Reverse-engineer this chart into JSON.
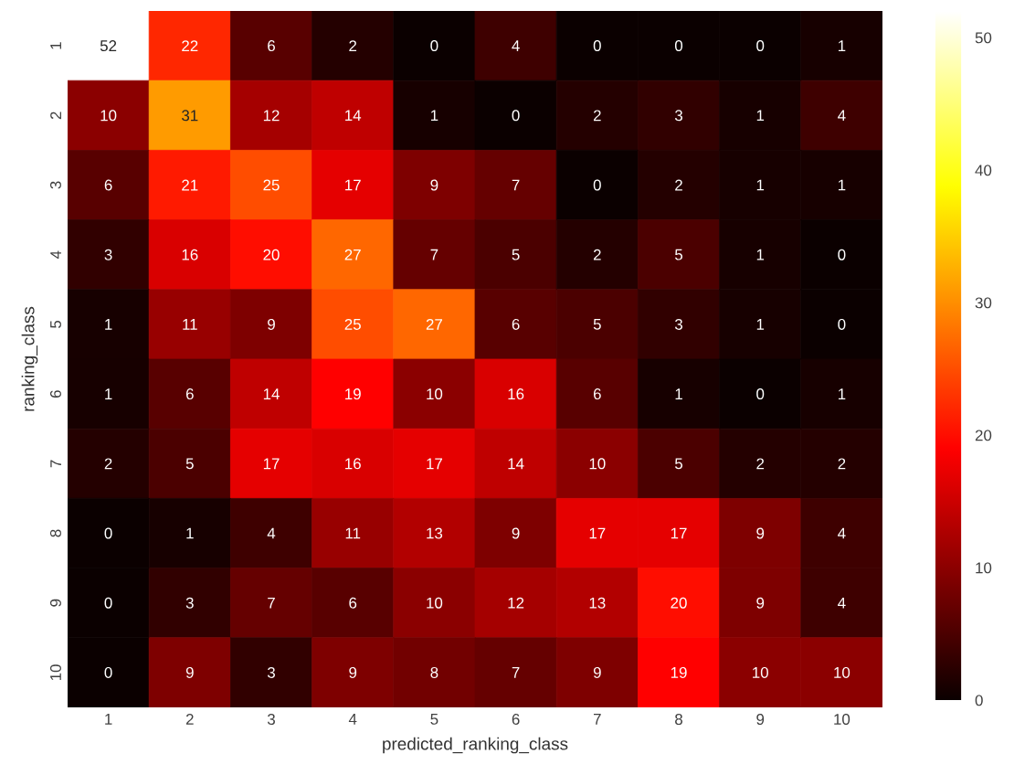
{
  "chart_data": {
    "type": "heatmap",
    "xlabel": "predicted_ranking_class",
    "ylabel": "ranking_class",
    "categories": [
      "1",
      "2",
      "3",
      "4",
      "5",
      "6",
      "7",
      "8",
      "9",
      "10"
    ],
    "y_categories": [
      "1",
      "2",
      "3",
      "4",
      "5",
      "6",
      "7",
      "8",
      "9",
      "10"
    ],
    "cells": [
      [
        52,
        22,
        6,
        2,
        0,
        4,
        0,
        0,
        0,
        1
      ],
      [
        10,
        31,
        12,
        14,
        1,
        0,
        2,
        3,
        1,
        4
      ],
      [
        6,
        21,
        25,
        17,
        9,
        7,
        0,
        2,
        1,
        1
      ],
      [
        3,
        16,
        20,
        27,
        7,
        5,
        2,
        5,
        1,
        0
      ],
      [
        1,
        11,
        9,
        25,
        27,
        6,
        5,
        3,
        1,
        0
      ],
      [
        1,
        6,
        14,
        19,
        10,
        16,
        6,
        1,
        0,
        1
      ],
      [
        2,
        5,
        17,
        16,
        17,
        14,
        10,
        5,
        2,
        2
      ],
      [
        0,
        1,
        4,
        11,
        13,
        9,
        17,
        17,
        9,
        4
      ],
      [
        0,
        3,
        7,
        6,
        10,
        12,
        13,
        20,
        9,
        4
      ],
      [
        0,
        9,
        3,
        9,
        8,
        7,
        9,
        19,
        10,
        10
      ]
    ],
    "data_labels": true,
    "clim": [
      0,
      52
    ],
    "cticks": [
      0,
      10,
      20,
      30,
      40,
      50
    ]
  }
}
